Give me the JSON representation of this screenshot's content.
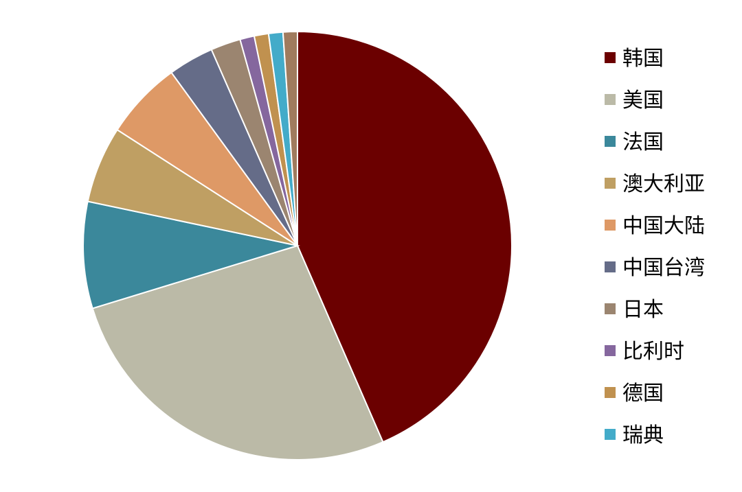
{
  "chart_data": {
    "type": "pie",
    "title": "",
    "legend_position": "right",
    "start_angle_deg": 0,
    "direction": "clockwise",
    "slices": [
      {
        "label": "韩国",
        "value": 44.3,
        "color": "#6B0000"
      },
      {
        "label": "美国",
        "value": 27.3,
        "color": "#BBBAA7"
      },
      {
        "label": "法国",
        "value": 8.2,
        "color": "#3B889B"
      },
      {
        "label": "澳大利亚",
        "value": 5.9,
        "color": "#BF9F63"
      },
      {
        "label": "中国大陆",
        "value": 6.0,
        "color": "#DE9966"
      },
      {
        "label": "中国台湾",
        "value": 3.5,
        "color": "#656C88"
      },
      {
        "label": "日本",
        "value": 2.3,
        "color": "#9B8570"
      },
      {
        "label": "比利时",
        "value": 1.1,
        "color": "#85679E"
      },
      {
        "label": "德国",
        "value": 1.1,
        "color": "#C0914F"
      },
      {
        "label": "瑞典",
        "value": 1.1,
        "color": "#43ABC9"
      },
      {
        "label": "",
        "value": 1.1,
        "color": "#A07B5E"
      }
    ]
  }
}
